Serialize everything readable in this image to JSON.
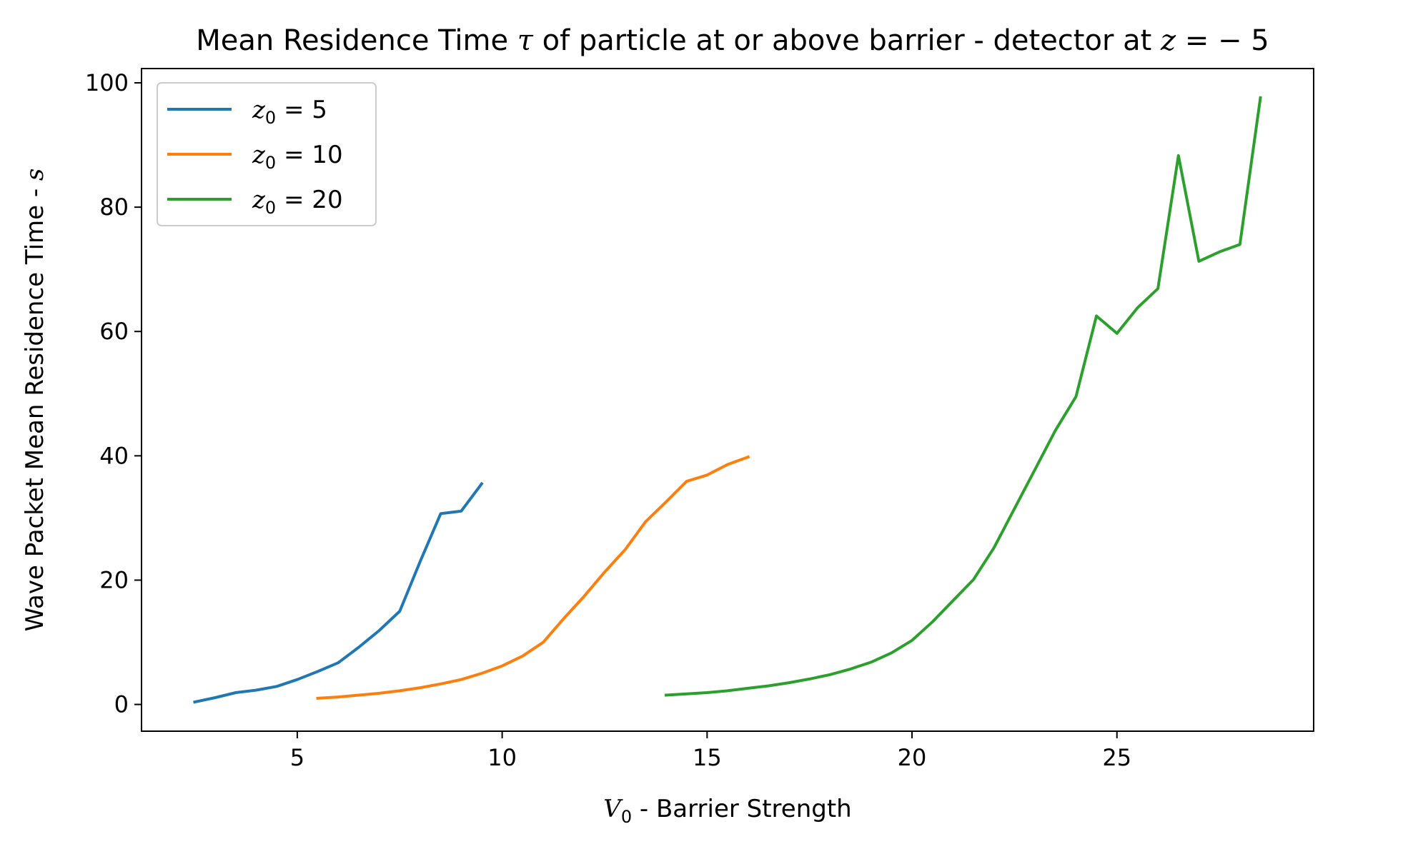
{
  "chart_data": {
    "type": "line",
    "title_parts": {
      "prefix": "Mean Residence Time ",
      "tau": "τ",
      "middle": " of particle at or above barrier - detector at ",
      "z": "z",
      "suffix": " = − 5"
    },
    "xlabel_parts": {
      "v": "V",
      "sub": "0",
      "rest": " - Barrier Strength"
    },
    "ylabel_parts": {
      "prefix": "Wave Packet Mean Residence Time - ",
      "s": "s"
    },
    "xlim": [
      1.2,
      29.8
    ],
    "ylim": [
      -4.3,
      102.3
    ],
    "xticks": [
      5,
      10,
      15,
      20,
      25
    ],
    "yticks": [
      0,
      20,
      40,
      60,
      80,
      100
    ],
    "legend": "top-left",
    "series": [
      {
        "name_var": "z",
        "name_sub": "0",
        "name_rest": " = 5",
        "color": "#1f77b4",
        "x": [
          2.5,
          3.0,
          3.5,
          4.0,
          4.5,
          5.0,
          5.5,
          6.0,
          6.5,
          7.0,
          7.5,
          8.0,
          8.5,
          9.0,
          9.5
        ],
        "y": [
          0.4,
          1.1,
          1.9,
          2.3,
          2.9,
          4.0,
          5.3,
          6.7,
          9.2,
          11.9,
          15.0,
          23.0,
          30.7,
          31.1,
          35.5
        ]
      },
      {
        "name_var": "z",
        "name_sub": "0",
        "name_rest": " = 10",
        "color": "#ff7f0e",
        "x": [
          5.5,
          6.0,
          6.5,
          7.0,
          7.5,
          8.0,
          8.5,
          9.0,
          9.5,
          10.0,
          10.5,
          11.0,
          11.5,
          12.0,
          12.5,
          13.0,
          13.5,
          14.0,
          14.5,
          15.0,
          15.5,
          16.0
        ],
        "y": [
          1.0,
          1.2,
          1.5,
          1.8,
          2.2,
          2.7,
          3.3,
          4.0,
          5.0,
          6.2,
          7.8,
          10.0,
          13.8,
          17.4,
          21.3,
          24.9,
          29.4,
          32.6,
          35.9,
          36.9,
          38.6,
          39.8
        ]
      },
      {
        "name_var": "z",
        "name_sub": "0",
        "name_rest": " = 20",
        "color": "#2ca02c",
        "x": [
          14.0,
          14.5,
          15.0,
          15.5,
          16.0,
          16.5,
          17.0,
          17.5,
          18.0,
          18.5,
          19.0,
          19.5,
          20.0,
          20.5,
          21.0,
          21.5,
          22.0,
          22.5,
          23.0,
          23.5,
          24.0,
          24.5,
          25.0,
          25.5,
          26.0,
          26.5,
          27.0,
          27.5,
          28.0,
          28.5
        ],
        "y": [
          1.5,
          1.7,
          1.9,
          2.2,
          2.6,
          3.0,
          3.5,
          4.1,
          4.8,
          5.7,
          6.8,
          8.3,
          10.3,
          13.3,
          16.7,
          20.1,
          25.2,
          31.5,
          37.8,
          44.1,
          49.5,
          62.5,
          59.7,
          63.8,
          66.9,
          88.3,
          71.3,
          72.8,
          74.0,
          97.6
        ]
      }
    ]
  }
}
